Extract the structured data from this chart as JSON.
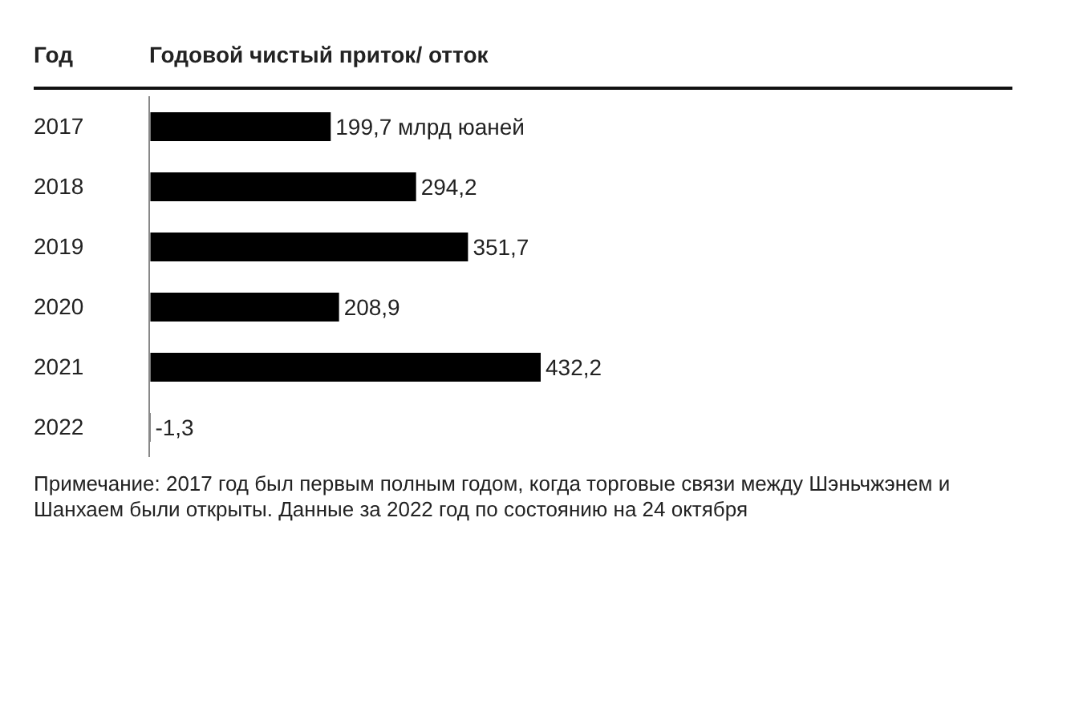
{
  "chart_data": {
    "type": "bar",
    "orientation": "horizontal",
    "ylabel": "Год",
    "xlabel": "Годовой чистый приток/ отток",
    "categories": [
      "2017",
      "2018",
      "2019",
      "2020",
      "2021",
      "2022"
    ],
    "values": [
      199.7,
      294.2,
      351.7,
      208.9,
      432.2,
      -1.3
    ],
    "value_labels": [
      "199,7 млрд юаней",
      "294,2",
      "351,7",
      "208,9",
      "432,2",
      "-1,3"
    ],
    "color": "#000000",
    "annotations": [
      "Примечание: 2017 год был первым полным годом, когда торговые связи между Шэньчжэнем и Шанхаем были открыты. Данные за 2022 год по состоянию на 24 октября"
    ]
  }
}
